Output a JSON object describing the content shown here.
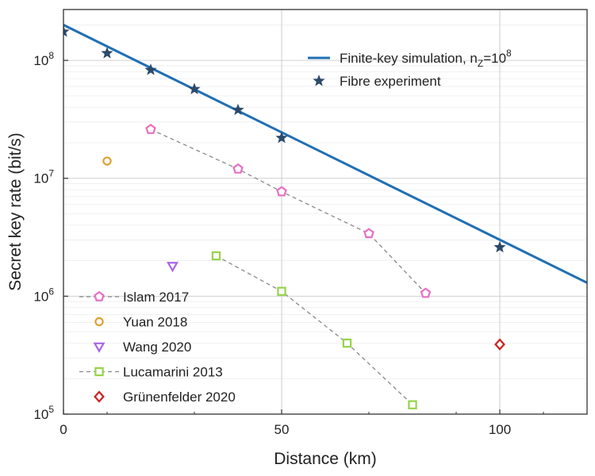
{
  "chart_data": {
    "type": "scatter",
    "xlabel": "Distance (km)",
    "ylabel": "Secret key rate (bit/s)",
    "xlim": [
      0,
      120
    ],
    "ylim": [
      100000,
      270000000
    ],
    "yscale": "log",
    "grid": true,
    "x_ticks": [
      0,
      50,
      100
    ],
    "x_tick_labels": [
      "0",
      "50",
      "100"
    ],
    "y_ticks": [
      100000,
      1000000,
      10000000,
      100000000
    ],
    "y_tick_labels": [
      {
        "base": "10",
        "exp": "5"
      },
      {
        "base": "10",
        "exp": "6"
      },
      {
        "base": "10",
        "exp": "7"
      },
      {
        "base": "10",
        "exp": "8"
      }
    ],
    "legend_top": {
      "position": "top-right",
      "entries": [
        {
          "prefix": "Finite-key simulation, n",
          "sub": "Z",
          "mid": "=10",
          "sup": "8",
          "series": "simulation"
        },
        {
          "prefix": "Fibre experiment",
          "sub": "",
          "mid": "",
          "sup": "",
          "series": "fibre"
        }
      ]
    },
    "legend_bottom": {
      "position": "bottom-left",
      "entries": [
        {
          "label": "Islam 2017",
          "series": "islam"
        },
        {
          "label": "Yuan 2018",
          "series": "yuan"
        },
        {
          "label": "Wang 2020",
          "series": "wang"
        },
        {
          "label": "Lucamarini 2013",
          "series": "lucamarini"
        },
        {
          "label": "Grünenfelder 2020",
          "series": "grunenfelder"
        }
      ]
    },
    "series": [
      {
        "id": "simulation",
        "style": "line",
        "color": "#1f6fb4",
        "x": [
          0,
          120
        ],
        "y": [
          200000000,
          1300000
        ]
      },
      {
        "id": "fibre",
        "style": "star",
        "color": "#2b4a6b",
        "x": [
          0,
          10,
          20,
          30,
          40,
          50,
          100
        ],
        "y": [
          175000000,
          115000000,
          83000000,
          57000000,
          38000000,
          22000000,
          2600000
        ]
      },
      {
        "id": "islam",
        "style": "pentagon",
        "color": "#e86fc3",
        "dashed": true,
        "x": [
          20,
          40,
          50,
          70,
          83
        ],
        "y": [
          26000000,
          12000000,
          7700000,
          3400000,
          1060000
        ]
      },
      {
        "id": "yuan",
        "style": "circle",
        "color": "#e0a030",
        "x": [
          10
        ],
        "y": [
          14000000
        ]
      },
      {
        "id": "wang",
        "style": "triangle-down",
        "color": "#a866e8",
        "x": [
          25
        ],
        "y": [
          1800000
        ]
      },
      {
        "id": "lucamarini",
        "style": "square",
        "color": "#96d44a",
        "dashed": true,
        "x": [
          35,
          50,
          65,
          80
        ],
        "y": [
          2200000,
          1100000,
          400000,
          120000
        ]
      },
      {
        "id": "grunenfelder",
        "style": "diamond",
        "color": "#cc1f1f",
        "x": [
          100
        ],
        "y": [
          390000
        ]
      }
    ]
  }
}
